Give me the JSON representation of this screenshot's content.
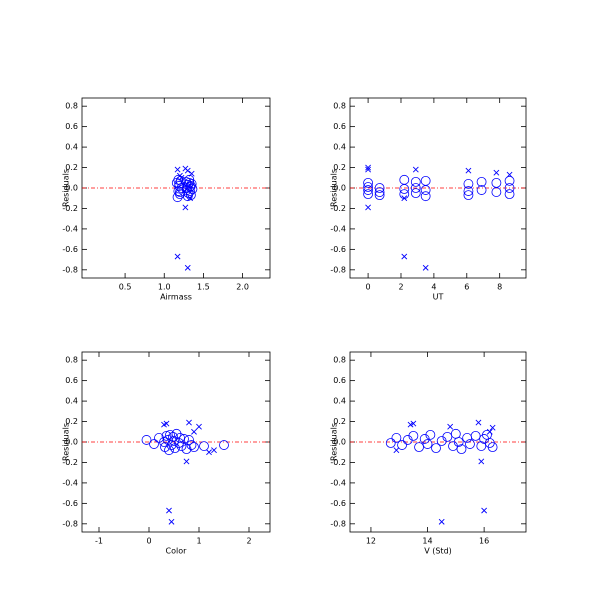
{
  "chart_data": [
    {
      "type": "scatter",
      "xlabel": "Airmass",
      "ylabel": "Residuals",
      "xlim": [
        -0.05,
        2.35
      ],
      "ylim": [
        -0.88,
        0.88
      ],
      "xticks": [
        0.5,
        {
          "value": 1,
          "label": "1.0"
        },
        1.5,
        {
          "value": 2,
          "label": "2.0"
        }
      ],
      "yticks": [
        0.8,
        0.6,
        0.4,
        0.2,
        {
          "value": 0,
          "label": "0.0"
        },
        -0.2,
        -0.4,
        -0.6,
        -0.8
      ],
      "hline": 0,
      "hline_color": "#ff0000",
      "series": [
        {
          "marker": "o",
          "color": "#0000ff",
          "x": [
            1.16,
            1.18,
            1.19,
            1.2,
            1.21,
            1.22,
            1.17,
            1.19,
            1.28,
            1.29,
            1.3,
            1.31,
            1.32,
            1.33,
            1.34,
            1.35,
            1.36,
            1.3,
            1.32,
            1.34,
            1.18,
            1.2,
            1.29,
            1.33
          ],
          "y": [
            0.05,
            -0.03,
            0.02,
            -0.06,
            0.07,
            0.0,
            -0.09,
            0.04,
            0.06,
            -0.02,
            0.03,
            -0.05,
            0.08,
            0.01,
            -0.07,
            0.04,
            -0.01,
            -0.08,
            0.05,
            0.02,
            0.08,
            -0.04,
            0.0,
            -0.03
          ]
        },
        {
          "marker": "x",
          "color": "#0000ff",
          "x": [
            1.17,
            1.3,
            1.27,
            1.3,
            1.17,
            1.27,
            1.35,
            1.2,
            1.33,
            1.22
          ],
          "y": [
            -0.67,
            -0.78,
            0.19,
            0.17,
            0.18,
            -0.19,
            0.14,
            0.12,
            -0.1,
            0.1
          ]
        }
      ]
    },
    {
      "type": "scatter",
      "xlabel": "UT",
      "ylabel": "Residuals",
      "xlim": [
        -1.1,
        9.6
      ],
      "ylim": [
        -0.88,
        0.88
      ],
      "xticks": [
        0,
        2,
        4,
        6,
        8
      ],
      "yticks": [
        0.8,
        0.6,
        0.4,
        0.2,
        {
          "value": 0,
          "label": "0.0"
        },
        -0.2,
        -0.4,
        -0.6,
        -0.8
      ],
      "hline": 0,
      "hline_color": "#ff0000",
      "series": [
        {
          "marker": "o",
          "color": "#0000ff",
          "x": [
            0,
            0,
            0,
            0,
            0.7,
            0.7,
            0.7,
            2.2,
            2.2,
            2.2,
            2.9,
            2.9,
            2.9,
            3.5,
            3.5,
            3.5,
            6.1,
            6.1,
            6.1,
            6.9,
            6.9,
            7.8,
            7.8,
            8.6,
            8.6,
            8.6
          ],
          "y": [
            0.05,
            -0.02,
            -0.06,
            0.01,
            0.0,
            -0.04,
            -0.07,
            0.08,
            -0.01,
            -0.06,
            0.06,
            0.0,
            -0.05,
            0.07,
            -0.02,
            -0.08,
            0.04,
            -0.03,
            -0.07,
            0.06,
            -0.02,
            0.05,
            -0.04,
            0.07,
            0.0,
            -0.06
          ]
        },
        {
          "marker": "x",
          "color": "#0000ff",
          "x": [
            0,
            0,
            0,
            2.2,
            3.5,
            2.9,
            6.1,
            7.8,
            8.6,
            2.2
          ],
          "y": [
            0.2,
            0.18,
            -0.19,
            -0.67,
            -0.78,
            0.18,
            0.17,
            0.15,
            0.13,
            -0.1
          ]
        }
      ]
    },
    {
      "type": "scatter",
      "xlabel": "Color",
      "ylabel": "Residuals",
      "xlim": [
        -1.34,
        2.42
      ],
      "ylim": [
        -0.88,
        0.88
      ],
      "xticks": [
        -1,
        0,
        1,
        2
      ],
      "yticks": [
        0.8,
        0.6,
        0.4,
        0.2,
        {
          "value": 0,
          "label": "0.0"
        },
        -0.2,
        -0.4,
        -0.6,
        -0.8
      ],
      "hline": 0,
      "hline_color": "#ff0000",
      "series": [
        {
          "marker": "o",
          "color": "#0000ff",
          "x": [
            -0.05,
            0.1,
            0.2,
            0.3,
            0.32,
            0.35,
            0.38,
            0.4,
            0.42,
            0.45,
            0.48,
            0.5,
            0.52,
            0.55,
            0.6,
            0.62,
            0.65,
            0.7,
            0.75,
            0.8,
            0.85,
            0.9,
            1.1,
            1.5
          ],
          "y": [
            0.02,
            -0.02,
            0.04,
            0.0,
            -0.05,
            0.06,
            0.02,
            -0.08,
            0.07,
            -0.03,
            0.05,
            0.01,
            -0.06,
            0.08,
            -0.01,
            0.04,
            -0.04,
            0.03,
            -0.07,
            0.02,
            -0.03,
            -0.05,
            -0.04,
            -0.03
          ]
        },
        {
          "marker": "x",
          "color": "#0000ff",
          "x": [
            0.4,
            0.45,
            0.3,
            0.35,
            0.8,
            0.75,
            1.0,
            1.2,
            1.3,
            0.9
          ],
          "y": [
            -0.67,
            -0.78,
            0.17,
            0.18,
            0.19,
            -0.19,
            0.15,
            -0.1,
            -0.08,
            0.1
          ]
        }
      ]
    },
    {
      "type": "scatter",
      "xlabel": "V (Std)",
      "ylabel": "Residuals",
      "xlim": [
        11.26,
        17.48
      ],
      "ylim": [
        -0.88,
        0.88
      ],
      "xticks": [
        12,
        14,
        16
      ],
      "yticks": [
        0.8,
        0.6,
        0.4,
        0.2,
        {
          "value": 0,
          "label": "0.0"
        },
        -0.2,
        -0.4,
        -0.6,
        -0.8
      ],
      "hline": 0,
      "hline_color": "#ff0000",
      "series": [
        {
          "marker": "o",
          "color": "#0000ff",
          "x": [
            12.7,
            12.9,
            13.1,
            13.3,
            13.5,
            13.7,
            13.9,
            14.0,
            14.1,
            14.3,
            14.5,
            14.7,
            14.9,
            15.0,
            15.1,
            15.2,
            15.4,
            15.5,
            15.7,
            15.9,
            16.0,
            16.1,
            16.2,
            16.3
          ],
          "y": [
            -0.01,
            0.04,
            -0.03,
            0.02,
            0.06,
            -0.05,
            0.03,
            -0.02,
            0.07,
            -0.06,
            0.01,
            0.05,
            -0.04,
            0.08,
            0.0,
            -0.07,
            0.04,
            -0.02,
            0.06,
            -0.04,
            0.03,
            0.07,
            -0.01,
            -0.05
          ]
        },
        {
          "marker": "x",
          "color": "#0000ff",
          "x": [
            14.5,
            16.0,
            13.4,
            13.5,
            15.8,
            15.9,
            14.8,
            16.3,
            16.2,
            12.9
          ],
          "y": [
            -0.78,
            -0.67,
            0.17,
            0.18,
            0.19,
            -0.19,
            0.15,
            0.14,
            0.1,
            -0.08
          ]
        }
      ]
    }
  ]
}
